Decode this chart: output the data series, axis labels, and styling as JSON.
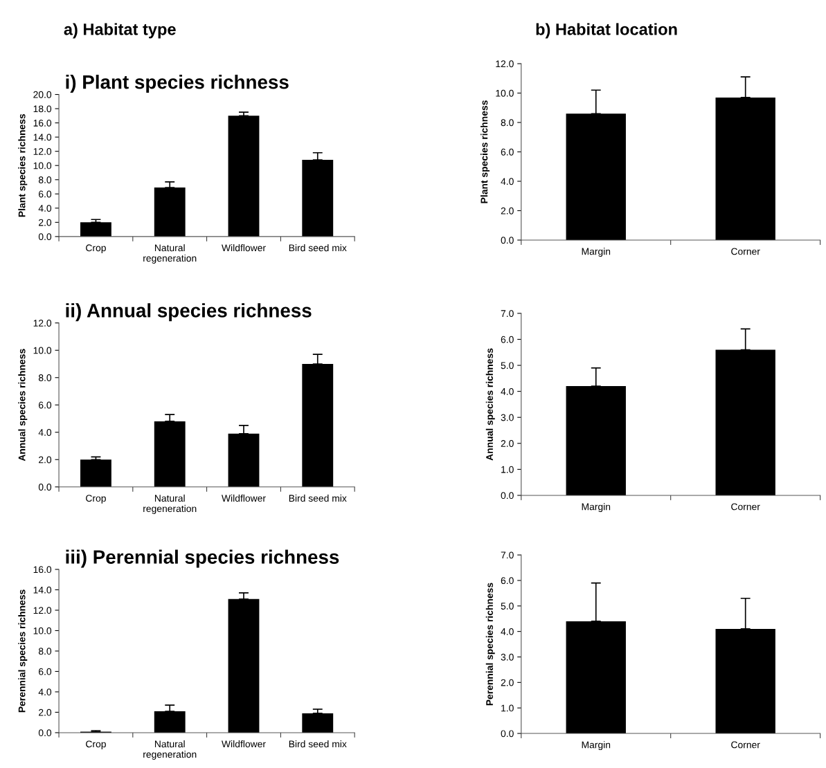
{
  "chart_data": [
    {
      "type": "bar",
      "title": "i) Plant species richness",
      "ylabel": "Plant species richness",
      "annotations": [
        "a) Habitat type"
      ],
      "categories": [
        "Crop",
        "Natural\nregeneration",
        "Wildflower",
        "Bird seed mix"
      ],
      "values": [
        2.0,
        6.9,
        17.0,
        10.8
      ],
      "errors": [
        [
          2.0,
          2.4
        ],
        [
          6.9,
          7.7
        ],
        [
          17.0,
          17.5
        ],
        [
          10.8,
          11.8
        ]
      ],
      "color": "#000000",
      "ylim": [
        0,
        20
      ],
      "yticks": [
        {
          "value": 0,
          "label": "0.0"
        },
        {
          "value": 2,
          "label": "2.0"
        },
        {
          "value": 4,
          "label": "4.0"
        },
        {
          "value": 6,
          "label": "6.0"
        },
        {
          "value": 8,
          "label": "8.0"
        },
        {
          "value": 10,
          "label": "10.0"
        },
        {
          "value": 12,
          "label": "12.0"
        },
        {
          "value": 14,
          "label": "14.0"
        },
        {
          "value": 16,
          "label": "16.0"
        },
        {
          "value": 18,
          "label": "18.0"
        },
        {
          "value": 20,
          "label": "20.0"
        }
      ],
      "grid": false
    },
    {
      "type": "bar",
      "ylabel": "Plant species richness",
      "annotations": [
        "b) Habitat location"
      ],
      "categories": [
        "Margin",
        "Corner"
      ],
      "values": [
        8.6,
        9.7
      ],
      "errors": [
        [
          8.6,
          10.2
        ],
        [
          9.7,
          11.1
        ]
      ],
      "color": "#000000",
      "ylim": [
        0,
        12
      ],
      "yticks": [
        {
          "value": 0,
          "label": "0.0"
        },
        {
          "value": 2,
          "label": "2.0"
        },
        {
          "value": 4,
          "label": "4.0"
        },
        {
          "value": 6,
          "label": "6.0"
        },
        {
          "value": 8,
          "label": "8.0"
        },
        {
          "value": 10,
          "label": "10.0"
        },
        {
          "value": 12,
          "label": "12.0"
        }
      ],
      "grid": false
    },
    {
      "type": "bar",
      "title": "ii) Annual species richness",
      "ylabel": "Annual species richness",
      "categories": [
        "Crop",
        "Natural\nregeneration",
        "Wildflower",
        "Bird seed mix"
      ],
      "values": [
        2.0,
        4.8,
        3.9,
        9.0
      ],
      "errors": [
        [
          2.0,
          2.2
        ],
        [
          4.8,
          5.3
        ],
        [
          3.9,
          4.5
        ],
        [
          9.0,
          9.7
        ]
      ],
      "color": "#000000",
      "ylim": [
        0,
        12
      ],
      "yticks": [
        {
          "value": 0,
          "label": "0.0"
        },
        {
          "value": 2,
          "label": "2.0"
        },
        {
          "value": 4,
          "label": "4.0"
        },
        {
          "value": 6,
          "label": "6.0"
        },
        {
          "value": 8,
          "label": "8.0"
        },
        {
          "value": 10,
          "label": "10.0"
        },
        {
          "value": 12,
          "label": "12.0"
        }
      ],
      "grid": false
    },
    {
      "type": "bar",
      "ylabel": "Annual species richness",
      "categories": [
        "Margin",
        "Corner"
      ],
      "values": [
        4.2,
        5.6
      ],
      "errors": [
        [
          4.2,
          4.9
        ],
        [
          5.6,
          6.4
        ]
      ],
      "color": "#000000",
      "ylim": [
        0,
        7
      ],
      "yticks": [
        {
          "value": 0,
          "label": "0.0"
        },
        {
          "value": 1,
          "label": "1.0"
        },
        {
          "value": 2,
          "label": "2.0"
        },
        {
          "value": 3,
          "label": "3.0"
        },
        {
          "value": 4,
          "label": "4.0"
        },
        {
          "value": 5,
          "label": "5.0"
        },
        {
          "value": 6,
          "label": "6.0"
        },
        {
          "value": 7,
          "label": "7.0"
        }
      ],
      "grid": false
    },
    {
      "type": "bar",
      "title": "iii) Perennial species richness",
      "ylabel": "Perennial species richness",
      "categories": [
        "Crop",
        "Natural\nregeneration",
        "Wildflower",
        "Bird seed mix"
      ],
      "values": [
        0.1,
        2.1,
        13.1,
        1.9
      ],
      "errors": [
        [
          0.1,
          0.2
        ],
        [
          2.1,
          2.7
        ],
        [
          13.1,
          13.7
        ],
        [
          1.9,
          2.3
        ]
      ],
      "color": "#000000",
      "ylim": [
        0,
        16
      ],
      "yticks": [
        {
          "value": 0,
          "label": "0.0"
        },
        {
          "value": 2,
          "label": "2.0"
        },
        {
          "value": 4,
          "label": "4.0"
        },
        {
          "value": 6,
          "label": "6.0"
        },
        {
          "value": 8,
          "label": "8.0"
        },
        {
          "value": 10,
          "label": "10.0"
        },
        {
          "value": 12,
          "label": "12.0"
        },
        {
          "value": 14,
          "label": "14.0"
        },
        {
          "value": 16,
          "label": "16.0"
        }
      ],
      "grid": false
    },
    {
      "type": "bar",
      "ylabel": "Perennial species richness",
      "categories": [
        "Margin",
        "Corner"
      ],
      "values": [
        4.4,
        4.1
      ],
      "errors": [
        [
          4.4,
          5.9
        ],
        [
          4.1,
          5.3
        ]
      ],
      "color": "#000000",
      "ylim": [
        0,
        7
      ],
      "yticks": [
        {
          "value": 0,
          "label": "0.0"
        },
        {
          "value": 1,
          "label": "1.0"
        },
        {
          "value": 2,
          "label": "2.0"
        },
        {
          "value": 3,
          "label": "3.0"
        },
        {
          "value": 4,
          "label": "4.0"
        },
        {
          "value": 5,
          "label": "5.0"
        },
        {
          "value": 6,
          "label": "6.0"
        },
        {
          "value": 7,
          "label": "7.0"
        }
      ],
      "grid": false
    }
  ]
}
